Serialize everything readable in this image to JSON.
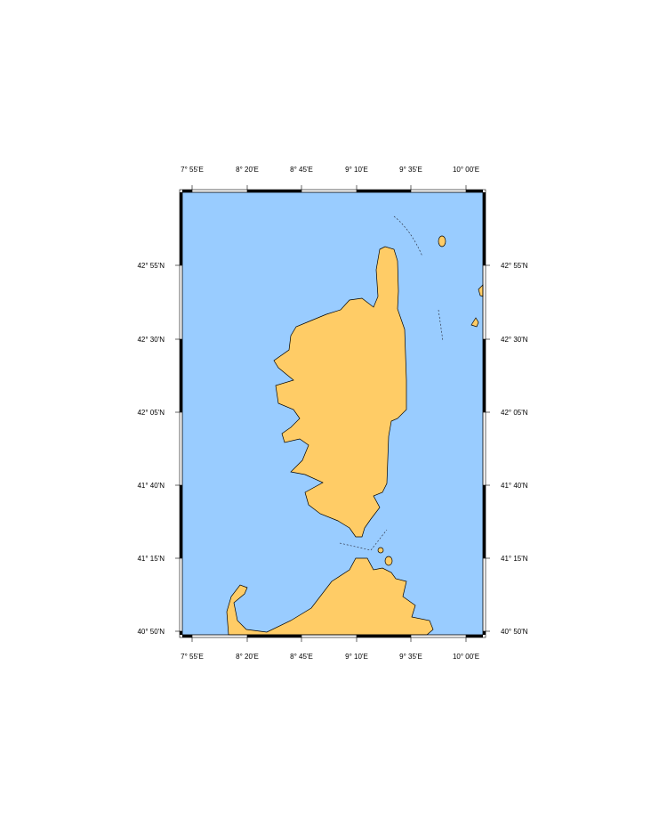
{
  "map": {
    "region": "Corsica and northern Sardinia",
    "colors": {
      "water": "#99ccff",
      "land": "#ffcc66",
      "coastline": "#000000",
      "frame": "#000000"
    },
    "longitude_labels": [
      "7° 55'E",
      "8° 20'E",
      "8° 45'E",
      "9° 10'E",
      "9° 35'E",
      "10° 00'E"
    ],
    "latitude_labels": [
      "42° 55'N",
      "42° 30'N",
      "42° 05'N",
      "41° 40'N",
      "41° 15'N",
      "40° 50'N"
    ],
    "extent": {
      "lon_min": "7° 50'E",
      "lon_max": "10° 08'E",
      "lat_min": "40° 49'N",
      "lat_max": "43° 20'N"
    },
    "frame_style": "fancy"
  }
}
